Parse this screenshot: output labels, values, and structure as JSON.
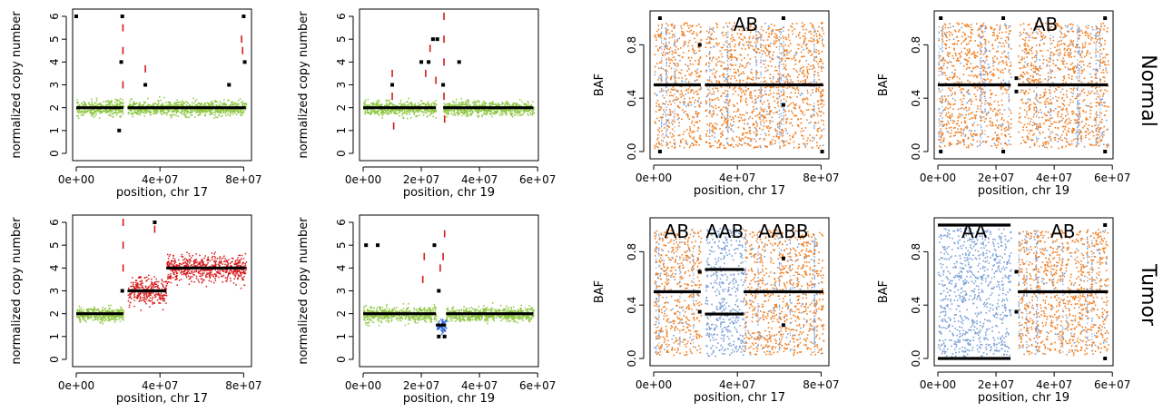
{
  "figure": {
    "row_labels": [
      "Normal",
      "Tumor"
    ],
    "colors": {
      "normal_cn": "#8dc63f",
      "gain_cn": "#d7191c",
      "loss_cn": "#2b5fd9",
      "baf_het": "#f07f22",
      "baf_loh": "#7b9fd6",
      "segment": "#000000",
      "outlier": "#d7191c"
    }
  },
  "chart_data": [
    {
      "id": "cn-normal-chr17",
      "type": "scatter",
      "measure": "copy_number",
      "xlabel": "position, chr 17",
      "ylabel": "normalized copy number",
      "xlim": [
        0,
        82000000
      ],
      "ylim": [
        0,
        6
      ],
      "xticks": [
        "0e+00",
        "4e+07",
        "8e+07"
      ],
      "xtick_values": [
        0,
        40000000,
        80000000
      ],
      "yticks": [
        "0",
        "1",
        "2",
        "3",
        "4",
        "5",
        "6"
      ],
      "ytick_values": [
        0,
        1,
        2,
        3,
        4,
        5,
        6
      ],
      "centromere": [
        22500000,
        24500000
      ],
      "segments": [
        {
          "start": 0,
          "end": 22500000,
          "value": 2,
          "color": "normal_cn"
        },
        {
          "start": 24500000,
          "end": 81000000,
          "value": 2,
          "color": "normal_cn"
        }
      ],
      "markers": [
        [
          0,
          6
        ],
        [
          22000000,
          6
        ],
        [
          21500000,
          4
        ],
        [
          20500000,
          1
        ],
        [
          33000000,
          3
        ],
        [
          73000000,
          3
        ],
        [
          80000000,
          6
        ],
        [
          80500000,
          4
        ]
      ],
      "outliers": [
        [
          22300000,
          3
        ],
        [
          22300000,
          4.5
        ],
        [
          22300000,
          5.5
        ],
        [
          33000000,
          3.7
        ],
        [
          79000000,
          5
        ],
        [
          79500000,
          4.5
        ]
      ]
    },
    {
      "id": "cn-normal-chr19",
      "type": "scatter",
      "measure": "copy_number",
      "xlabel": "position, chr 19",
      "ylabel": "normalized copy number",
      "xlim": [
        0,
        59000000
      ],
      "ylim": [
        0,
        6
      ],
      "xticks": [
        "0e+00",
        "2e+07",
        "4e+07",
        "6e+07"
      ],
      "xtick_values": [
        0,
        20000000,
        40000000,
        60000000
      ],
      "yticks": [
        "0",
        "1",
        "2",
        "3",
        "4",
        "5",
        "6"
      ],
      "ytick_values": [
        0,
        1,
        2,
        3,
        4,
        5,
        6
      ],
      "centromere": [
        25000000,
        27500000
      ],
      "segments": [
        {
          "start": 0,
          "end": 25000000,
          "value": 2,
          "color": "normal_cn"
        },
        {
          "start": 27500000,
          "end": 58500000,
          "value": 2,
          "color": "normal_cn"
        }
      ],
      "markers": [
        [
          10000000,
          3
        ],
        [
          20000000,
          4
        ],
        [
          22500000,
          4
        ],
        [
          24000000,
          5
        ],
        [
          25500000,
          5
        ],
        [
          27500000,
          3
        ],
        [
          33000000,
          4
        ]
      ],
      "outliers": [
        [
          10000000,
          2.5
        ],
        [
          10000000,
          3.5
        ],
        [
          10500000,
          1.2
        ],
        [
          21500000,
          3.5
        ],
        [
          23000000,
          4.6
        ],
        [
          25000000,
          3.2
        ],
        [
          27800000,
          2.5
        ],
        [
          27800000,
          4
        ],
        [
          27800000,
          5
        ],
        [
          27800000,
          6
        ],
        [
          28000000,
          1.5
        ]
      ]
    },
    {
      "id": "baf-normal-chr17",
      "type": "scatter",
      "measure": "baf",
      "xlabel": "position, chr 17",
      "ylabel": "BAF",
      "xlim": [
        0,
        82000000
      ],
      "ylim": [
        0,
        1
      ],
      "xticks": [
        "0e+00",
        "4e+07",
        "8e+07"
      ],
      "xtick_values": [
        0,
        40000000,
        80000000
      ],
      "yticks": [
        "0.0",
        "0.4",
        "0.8"
      ],
      "ytick_values": [
        0,
        0.4,
        0.8
      ],
      "centromere": [
        22500000,
        24500000
      ],
      "regions": [
        {
          "start": 0,
          "end": 22500000,
          "mode": "het"
        },
        {
          "start": 24500000,
          "end": 81000000,
          "mode": "het"
        }
      ],
      "segments": [
        {
          "start": 0,
          "end": 22500000,
          "value": 0.5
        },
        {
          "start": 24500000,
          "end": 81000000,
          "value": 0.5
        }
      ],
      "annotations": [
        {
          "text": "AB",
          "x": 44000000,
          "y": 1.0
        }
      ],
      "markers": [
        [
          3000000,
          1
        ],
        [
          3000000,
          0
        ],
        [
          22000000,
          0.8
        ],
        [
          62000000,
          1
        ],
        [
          62000000,
          0.35
        ],
        [
          80500000,
          0
        ]
      ]
    },
    {
      "id": "baf-normal-chr19",
      "type": "scatter",
      "measure": "baf",
      "xlabel": "position, chr 19",
      "ylabel": "BAF",
      "xlim": [
        0,
        59000000
      ],
      "ylim": [
        0,
        1
      ],
      "xticks": [
        "0e+00",
        "2e+07",
        "4e+07",
        "6e+07"
      ],
      "xtick_values": [
        0,
        20000000,
        40000000,
        60000000
      ],
      "yticks": [
        "0.0",
        "0.4",
        "0.8"
      ],
      "ytick_values": [
        0,
        0.4,
        0.8
      ],
      "centromere": [
        25000000,
        27500000
      ],
      "regions": [
        {
          "start": 0,
          "end": 25000000,
          "mode": "het"
        },
        {
          "start": 27500000,
          "end": 58500000,
          "mode": "het"
        }
      ],
      "segments": [
        {
          "start": 0,
          "end": 25000000,
          "value": 0.5
        },
        {
          "start": 27500000,
          "end": 58500000,
          "value": 0.5
        }
      ],
      "annotations": [
        {
          "text": "AB",
          "x": 37000000,
          "y": 1.0
        }
      ],
      "markers": [
        [
          1000000,
          1
        ],
        [
          1000000,
          0
        ],
        [
          22500000,
          1
        ],
        [
          22500000,
          0
        ],
        [
          27000000,
          0.55
        ],
        [
          27000000,
          0.45
        ],
        [
          57500000,
          1
        ],
        [
          57500000,
          0
        ]
      ]
    },
    {
      "id": "cn-tumor-chr17",
      "type": "scatter",
      "measure": "copy_number",
      "xlabel": "position, chr 17",
      "ylabel": "normalized copy number",
      "xlim": [
        0,
        82000000
      ],
      "ylim": [
        0,
        6
      ],
      "xticks": [
        "0e+00",
        "4e+07",
        "8e+07"
      ],
      "xtick_values": [
        0,
        40000000,
        80000000
      ],
      "yticks": [
        "0",
        "1",
        "2",
        "3",
        "4",
        "5",
        "6"
      ],
      "ytick_values": [
        0,
        1,
        2,
        3,
        4,
        5,
        6
      ],
      "centromere": [
        22500000,
        24500000
      ],
      "segments": [
        {
          "start": 0,
          "end": 22500000,
          "value": 2,
          "color": "normal_cn"
        },
        {
          "start": 24500000,
          "end": 43000000,
          "value": 3,
          "color": "gain_cn"
        },
        {
          "start": 43000000,
          "end": 81000000,
          "value": 4,
          "color": "gain_cn"
        }
      ],
      "markers": [
        [
          22000000,
          3
        ],
        [
          37500000,
          6
        ]
      ],
      "outliers": [
        [
          22400000,
          4
        ],
        [
          22400000,
          5
        ],
        [
          22400000,
          6
        ],
        [
          37500000,
          5.7
        ]
      ]
    },
    {
      "id": "cn-tumor-chr19",
      "type": "scatter",
      "measure": "copy_number",
      "xlabel": "position, chr 19",
      "ylabel": "normalized copy number",
      "xlim": [
        0,
        59000000
      ],
      "ylim": [
        0,
        6
      ],
      "xticks": [
        "0e+00",
        "2e+07",
        "4e+07",
        "6e+07"
      ],
      "xtick_values": [
        0,
        20000000,
        40000000,
        60000000
      ],
      "yticks": [
        "0",
        "1",
        "2",
        "3",
        "4",
        "5",
        "6"
      ],
      "ytick_values": [
        0,
        1,
        2,
        3,
        4,
        5,
        6
      ],
      "centromere": [
        25500000,
        26500000
      ],
      "segments": [
        {
          "start": 0,
          "end": 25000000,
          "value": 2,
          "color": "normal_cn"
        },
        {
          "start": 25000000,
          "end": 28500000,
          "value": 1.5,
          "color": "loss_cn"
        },
        {
          "start": 28500000,
          "end": 58500000,
          "value": 2,
          "color": "normal_cn"
        }
      ],
      "markers": [
        [
          1000000,
          5
        ],
        [
          5000000,
          5
        ],
        [
          24500000,
          5
        ],
        [
          26000000,
          1
        ],
        [
          26000000,
          3
        ],
        [
          28000000,
          1
        ]
      ],
      "outliers": [
        [
          20500000,
          3.5
        ],
        [
          21000000,
          4.5
        ],
        [
          26500000,
          4
        ],
        [
          27500000,
          4.5
        ],
        [
          28000000,
          5.5
        ]
      ]
    },
    {
      "id": "baf-tumor-chr17",
      "type": "scatter",
      "measure": "baf",
      "xlabel": "position, chr 17",
      "ylabel": "BAF",
      "xlim": [
        0,
        82000000
      ],
      "ylim": [
        0,
        1
      ],
      "xticks": [
        "0e+00",
        "4e+07",
        "8e+07"
      ],
      "xtick_values": [
        0,
        40000000,
        80000000
      ],
      "yticks": [
        "0.0",
        "0.4",
        "0.8"
      ],
      "ytick_values": [
        0,
        0.4,
        0.8
      ],
      "centromere": [
        22500000,
        24500000
      ],
      "regions": [
        {
          "start": 0,
          "end": 22500000,
          "mode": "het"
        },
        {
          "start": 24500000,
          "end": 43000000,
          "mode": "allelic"
        },
        {
          "start": 43000000,
          "end": 81000000,
          "mode": "het"
        }
      ],
      "segments": [
        {
          "start": 0,
          "end": 22500000,
          "value": 0.5
        },
        {
          "start": 24500000,
          "end": 43000000,
          "value": 0.667
        },
        {
          "start": 24500000,
          "end": 43000000,
          "value": 0.333
        },
        {
          "start": 43000000,
          "end": 81000000,
          "value": 0.5
        }
      ],
      "annotations": [
        {
          "text": "AB",
          "x": 11000000,
          "y": 1.0
        },
        {
          "text": "AAB",
          "x": 34000000,
          "y": 1.0
        },
        {
          "text": "AABB",
          "x": 62000000,
          "y": 1.0
        }
      ],
      "markers": [
        [
          22000000,
          0.65
        ],
        [
          22000000,
          0.35
        ],
        [
          62000000,
          0.75
        ],
        [
          62000000,
          0.25
        ]
      ]
    },
    {
      "id": "baf-tumor-chr19",
      "type": "scatter",
      "measure": "baf",
      "xlabel": "position, chr 19",
      "ylabel": "BAF",
      "xlim": [
        0,
        59000000
      ],
      "ylim": [
        0,
        1
      ],
      "xticks": [
        "0e+00",
        "2e+07",
        "4e+07",
        "6e+07"
      ],
      "xtick_values": [
        0,
        20000000,
        40000000,
        60000000
      ],
      "yticks": [
        "0.0",
        "0.4",
        "0.8"
      ],
      "ytick_values": [
        0,
        0.4,
        0.8
      ],
      "centromere": [
        25000000,
        27500000
      ],
      "regions": [
        {
          "start": 0,
          "end": 25000000,
          "mode": "loh"
        },
        {
          "start": 27500000,
          "end": 58500000,
          "mode": "het"
        }
      ],
      "segments": [
        {
          "start": 0,
          "end": 25000000,
          "value": 1
        },
        {
          "start": 0,
          "end": 25000000,
          "value": 0
        },
        {
          "start": 27500000,
          "end": 58500000,
          "value": 0.5
        }
      ],
      "annotations": [
        {
          "text": "AA",
          "x": 12500000,
          "y": 1.0
        },
        {
          "text": "AB",
          "x": 43000000,
          "y": 1.0
        }
      ],
      "markers": [
        [
          27000000,
          0.65
        ],
        [
          27000000,
          0.35
        ],
        [
          57500000,
          1
        ],
        [
          57500000,
          0
        ]
      ]
    }
  ]
}
